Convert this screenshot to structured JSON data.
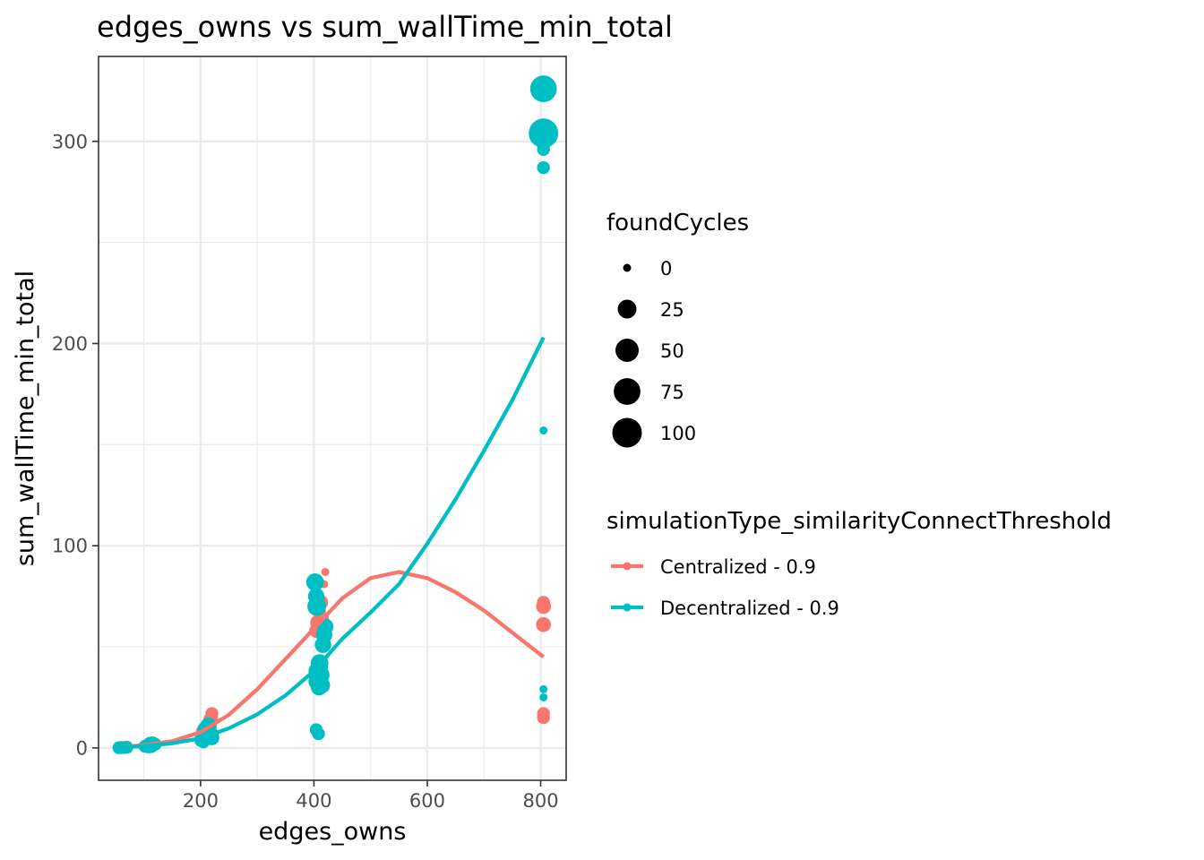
{
  "chart_data": {
    "type": "scatter",
    "title": "edges_owns  vs  sum_wallTime_min_total",
    "xlabel": "edges_owns",
    "ylabel": "sum_wallTime_min_total",
    "xlim": [
      20,
      845
    ],
    "ylim": [
      -16,
      342
    ],
    "x_ticks": [
      200,
      400,
      600,
      800
    ],
    "y_ticks": [
      0,
      100,
      200,
      300
    ],
    "x_tick_labels": [
      "200",
      "400",
      "600",
      "800"
    ],
    "y_tick_labels": [
      "0",
      "100",
      "200",
      "300"
    ],
    "grid": true,
    "legend_position": "right",
    "size_legend": {
      "title": "foundCycles",
      "levels": [
        {
          "value": 0,
          "label": "0"
        },
        {
          "value": 25,
          "label": "25"
        },
        {
          "value": 50,
          "label": "50"
        },
        {
          "value": 75,
          "label": "75"
        },
        {
          "value": 100,
          "label": "100"
        }
      ]
    },
    "color_legend": {
      "title": "simulationType_similarityConnectThreshold"
    },
    "series": [
      {
        "name": "Centralized - 0.9",
        "color": "#F8766D",
        "points": [
          {
            "x": 56,
            "y": 0.2,
            "s": 0
          },
          {
            "x": 62,
            "y": 0.3,
            "s": 0
          },
          {
            "x": 68,
            "y": 0.4,
            "s": 0
          },
          {
            "x": 105,
            "y": 1.0,
            "s": 0
          },
          {
            "x": 112,
            "y": 1.5,
            "s": 5
          },
          {
            "x": 118,
            "y": 2.0,
            "s": 0
          },
          {
            "x": 205,
            "y": 8,
            "s": 10
          },
          {
            "x": 212,
            "y": 10,
            "s": 15
          },
          {
            "x": 218,
            "y": 14,
            "s": 10
          },
          {
            "x": 220,
            "y": 17,
            "s": 5
          },
          {
            "x": 208,
            "y": 5,
            "s": 5
          },
          {
            "x": 405,
            "y": 58,
            "s": 10
          },
          {
            "x": 408,
            "y": 62,
            "s": 15
          },
          {
            "x": 410,
            "y": 67,
            "s": 5
          },
          {
            "x": 412,
            "y": 72,
            "s": 10
          },
          {
            "x": 418,
            "y": 81,
            "s": 0
          },
          {
            "x": 420,
            "y": 87,
            "s": 0
          },
          {
            "x": 415,
            "y": 64,
            "s": 5
          },
          {
            "x": 805,
            "y": 72,
            "s": 5
          },
          {
            "x": 805,
            "y": 70,
            "s": 10
          },
          {
            "x": 805,
            "y": 61,
            "s": 10
          },
          {
            "x": 805,
            "y": 17,
            "s": 5
          },
          {
            "x": 805,
            "y": 15,
            "s": 5
          }
        ],
        "fit": [
          {
            "x": 56,
            "y": 0.4
          },
          {
            "x": 100,
            "y": 1.4
          },
          {
            "x": 150,
            "y": 3.3
          },
          {
            "x": 200,
            "y": 7.8
          },
          {
            "x": 250,
            "y": 16.4
          },
          {
            "x": 300,
            "y": 29
          },
          {
            "x": 350,
            "y": 44
          },
          {
            "x": 400,
            "y": 59
          },
          {
            "x": 450,
            "y": 74
          },
          {
            "x": 500,
            "y": 84
          },
          {
            "x": 550,
            "y": 87
          },
          {
            "x": 600,
            "y": 84
          },
          {
            "x": 650,
            "y": 77
          },
          {
            "x": 700,
            "y": 68
          },
          {
            "x": 750,
            "y": 57
          },
          {
            "x": 805,
            "y": 45
          }
        ]
      },
      {
        "name": "Decentralized - 0.9",
        "color": "#00BFC4",
        "points": [
          {
            "x": 56,
            "y": 0.1,
            "s": 5
          },
          {
            "x": 60,
            "y": 0.2,
            "s": 5
          },
          {
            "x": 66,
            "y": 0.2,
            "s": 5
          },
          {
            "x": 70,
            "y": 0.3,
            "s": 5
          },
          {
            "x": 102,
            "y": 0.8,
            "s": 5
          },
          {
            "x": 108,
            "y": 1.0,
            "s": 10
          },
          {
            "x": 112,
            "y": 1.5,
            "s": 15
          },
          {
            "x": 115,
            "y": 2.0,
            "s": 10
          },
          {
            "x": 120,
            "y": 1.8,
            "s": 5
          },
          {
            "x": 202,
            "y": 4,
            "s": 10
          },
          {
            "x": 206,
            "y": 6,
            "s": 15
          },
          {
            "x": 210,
            "y": 9,
            "s": 20
          },
          {
            "x": 214,
            "y": 11,
            "s": 15
          },
          {
            "x": 218,
            "y": 7,
            "s": 10
          },
          {
            "x": 220,
            "y": 5,
            "s": 10
          },
          {
            "x": 205,
            "y": 3,
            "s": 5
          },
          {
            "x": 402,
            "y": 82,
            "s": 20
          },
          {
            "x": 404,
            "y": 75,
            "s": 15
          },
          {
            "x": 405,
            "y": 70,
            "s": 25
          },
          {
            "x": 406,
            "y": 38,
            "s": 20
          },
          {
            "x": 407,
            "y": 33,
            "s": 25
          },
          {
            "x": 409,
            "y": 30,
            "s": 15
          },
          {
            "x": 410,
            "y": 42,
            "s": 20
          },
          {
            "x": 412,
            "y": 36,
            "s": 20
          },
          {
            "x": 414,
            "y": 31,
            "s": 15
          },
          {
            "x": 416,
            "y": 51,
            "s": 15
          },
          {
            "x": 418,
            "y": 56,
            "s": 15
          },
          {
            "x": 420,
            "y": 60,
            "s": 15
          },
          {
            "x": 404,
            "y": 9,
            "s": 5
          },
          {
            "x": 408,
            "y": 7,
            "s": 5
          },
          {
            "x": 412,
            "y": 40,
            "s": 10
          },
          {
            "x": 805,
            "y": 326,
            "s": 75
          },
          {
            "x": 805,
            "y": 304,
            "s": 100
          },
          {
            "x": 805,
            "y": 296,
            "s": 5
          },
          {
            "x": 805,
            "y": 287,
            "s": 5
          },
          {
            "x": 805,
            "y": 157,
            "s": 0
          },
          {
            "x": 805,
            "y": 29,
            "s": 0
          },
          {
            "x": 805,
            "y": 25,
            "s": 0
          }
        ],
        "fit": [
          {
            "x": 56,
            "y": 0.3
          },
          {
            "x": 100,
            "y": 0.9
          },
          {
            "x": 150,
            "y": 2.3
          },
          {
            "x": 200,
            "y": 4.8
          },
          {
            "x": 250,
            "y": 9.7
          },
          {
            "x": 300,
            "y": 16.6
          },
          {
            "x": 350,
            "y": 26
          },
          {
            "x": 400,
            "y": 38
          },
          {
            "x": 450,
            "y": 54
          },
          {
            "x": 500,
            "y": 67
          },
          {
            "x": 550,
            "y": 81
          },
          {
            "x": 600,
            "y": 101
          },
          {
            "x": 650,
            "y": 123
          },
          {
            "x": 700,
            "y": 147
          },
          {
            "x": 750,
            "y": 172
          },
          {
            "x": 805,
            "y": 203
          }
        ]
      }
    ]
  }
}
